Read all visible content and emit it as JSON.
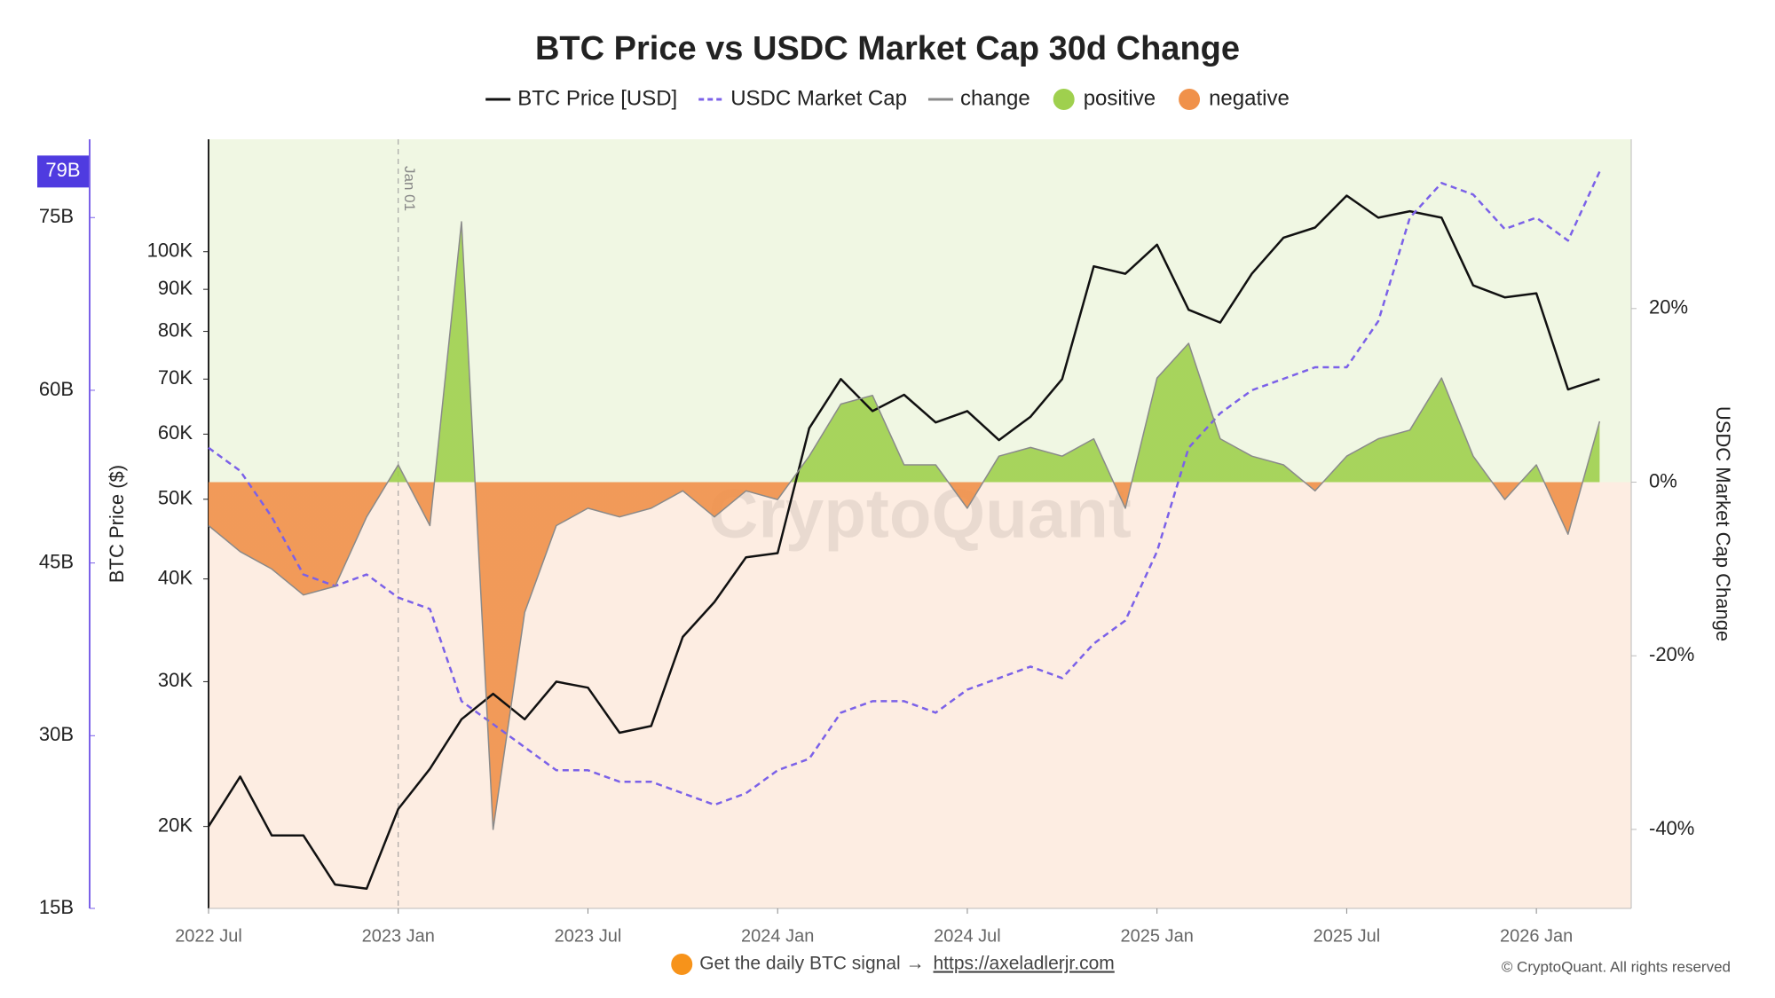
{
  "chart_data": {
    "type": "line",
    "title": "BTC Price vs USDC Market Cap 30d Change",
    "x": [
      "2022-07",
      "2022-08",
      "2022-09",
      "2022-10",
      "2022-11",
      "2022-12",
      "2023-01",
      "2023-02",
      "2023-03",
      "2023-04",
      "2023-05",
      "2023-06",
      "2023-07",
      "2023-08",
      "2023-09",
      "2023-10",
      "2023-11",
      "2023-12",
      "2024-01",
      "2024-02",
      "2024-03",
      "2024-04",
      "2024-05",
      "2024-06",
      "2024-07",
      "2024-08",
      "2024-09",
      "2024-10",
      "2024-11",
      "2024-12",
      "2025-01",
      "2025-02",
      "2025-03",
      "2025-04",
      "2025-05",
      "2025-06",
      "2025-07",
      "2025-08",
      "2025-09",
      "2025-10",
      "2025-11",
      "2025-12",
      "2026-01",
      "2026-02",
      "2026-03"
    ],
    "xlim": [
      "2022-07",
      "2026-04"
    ],
    "xticks": [
      {
        "value": "2022-07",
        "label": "2022 Jul"
      },
      {
        "value": "2023-01",
        "label": "2023 Jan"
      },
      {
        "value": "2023-07",
        "label": "2023 Jul"
      },
      {
        "value": "2024-01",
        "label": "2024 Jan"
      },
      {
        "value": "2024-07",
        "label": "2024 Jul"
      },
      {
        "value": "2025-01",
        "label": "2025 Jan"
      },
      {
        "value": "2025-07",
        "label": "2025 Jul"
      },
      {
        "value": "2026-01",
        "label": "2026 Jan"
      }
    ],
    "ylabel": "BTC Price ($)",
    "ylog": true,
    "ylim": [
      15900,
      137000
    ],
    "yticks": [
      {
        "value": 20000,
        "label": "20K"
      },
      {
        "value": 30000,
        "label": "30K"
      },
      {
        "value": 40000,
        "label": "40K"
      },
      {
        "value": 50000,
        "label": "50K"
      },
      {
        "value": 60000,
        "label": "60K"
      },
      {
        "value": 70000,
        "label": "70K"
      },
      {
        "value": 80000,
        "label": "80K"
      },
      {
        "value": 90000,
        "label": "90K"
      },
      {
        "value": 100000,
        "label": "100K"
      }
    ],
    "usdc_lim": [
      15,
      81.8
    ],
    "usdc_ticks": [
      {
        "value": 15,
        "label": "15B"
      },
      {
        "value": 30,
        "label": "30B"
      },
      {
        "value": 45,
        "label": "45B"
      },
      {
        "value": 60,
        "label": "60B"
      },
      {
        "value": 75,
        "label": "75B"
      }
    ],
    "usdc_current_label": "79B",
    "y2label": "USDC Market Cap Change",
    "y2lim": [
      -49.1,
      39.5
    ],
    "y2ticks": [
      {
        "value": -40,
        "label": "-40%"
      },
      {
        "value": -20,
        "label": "-20%"
      },
      {
        "value": 0,
        "label": "0%"
      },
      {
        "value": 20,
        "label": "20%"
      }
    ],
    "annotation": {
      "x": "2023-01",
      "label": "Jan 01"
    },
    "series": [
      {
        "name": "BTC Price [USD]",
        "color": "#111111",
        "axis": "y",
        "values": [
          20000,
          23000,
          19500,
          19500,
          17000,
          16800,
          21000,
          23500,
          27000,
          29000,
          27000,
          30000,
          29500,
          26000,
          26500,
          34000,
          37500,
          42500,
          43000,
          61000,
          70000,
          64000,
          67000,
          62000,
          64000,
          59000,
          63000,
          70000,
          96000,
          94000,
          102000,
          85000,
          82000,
          94000,
          104000,
          107000,
          117000,
          110000,
          112000,
          110000,
          91000,
          88000,
          89000,
          68000,
          70000
        ]
      },
      {
        "name": "USDC Market Cap",
        "color": "#7b61e8",
        "axis": "usdc",
        "dashed": true,
        "values": [
          55,
          53,
          49,
          44,
          43,
          44,
          42,
          41,
          33,
          31,
          29,
          27,
          27,
          26,
          26,
          25,
          24,
          25,
          27,
          28,
          32,
          33,
          33,
          32,
          34,
          35,
          36,
          35,
          38,
          40,
          46,
          55,
          58,
          60,
          61,
          62,
          62,
          66,
          75,
          78,
          77,
          74,
          75,
          73,
          79
        ]
      },
      {
        "name": "change",
        "color": "#8a8a8a",
        "axis": "y2",
        "positive_label": "positive",
        "positive_color": "#9fd04e",
        "negative_label": "negative",
        "negative_color": "#f0914a",
        "values": [
          -5,
          -8,
          -10,
          -13,
          -12,
          -4,
          2,
          -5,
          30,
          -40,
          -15,
          -5,
          -3,
          -4,
          -3,
          -1,
          -4,
          -1,
          -2,
          3,
          9,
          10,
          2,
          2,
          -3,
          3,
          4,
          3,
          5,
          -3,
          12,
          16,
          5,
          3,
          2,
          -1,
          3,
          5,
          6,
          12,
          3,
          -2,
          2,
          -6,
          7
        ]
      }
    ],
    "watermark": "CryptoQuant",
    "footer_text": "Get the daily BTC signal →",
    "footer_link": "https://axeladlerjr.com",
    "copyright": "© CryptoQuant. All rights reserved"
  }
}
